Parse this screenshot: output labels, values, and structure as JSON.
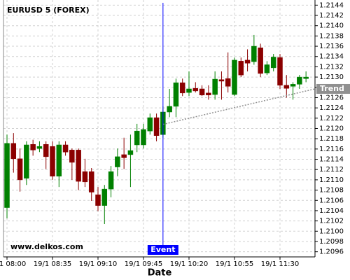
{
  "chart_data": {
    "type": "candlestick",
    "title": "EURUSD 5 (FOREX)",
    "watermark": "www.delkos.com",
    "x_label": "Date",
    "categories": [
      "19/1 08:00",
      null,
      null,
      null,
      null,
      null,
      null,
      "19/1 08:35",
      null,
      null,
      null,
      null,
      null,
      null,
      "19/1 09:10",
      null,
      null,
      null,
      null,
      null,
      null,
      "19/1 09:45",
      null,
      null,
      null,
      null,
      null,
      null,
      "19/1 10:20",
      null,
      null,
      null,
      null,
      null,
      null,
      "19/1 10:55",
      null,
      null,
      null,
      null,
      null,
      null,
      "19/1 11:30",
      null,
      null,
      null,
      null
    ],
    "open": [
      1.21046,
      1.21171,
      1.21141,
      1.21103,
      1.21169,
      1.21161,
      1.21169,
      1.21165,
      1.21107,
      1.21168,
      1.21158,
      1.21158,
      1.21116,
      1.21116,
      1.21071,
      1.2105,
      1.21082,
      1.21125,
      1.21149,
      1.21149,
      1.21168,
      1.21168,
      1.21195,
      1.21221,
      1.21188,
      1.21232,
      1.21243,
      1.21289,
      1.2127,
      1.21278,
      1.21277,
      1.21269,
      1.21266,
      1.21295,
      1.21297,
      1.21266,
      1.21331,
      1.21333,
      1.2133,
      1.21357,
      1.21308,
      1.21318,
      1.21338,
      1.21284,
      1.21282,
      1.21286,
      1.21297
    ],
    "high": [
      1.21188,
      1.21191,
      1.21161,
      1.21175,
      1.21178,
      1.21175,
      1.21175,
      1.21175,
      1.21175,
      1.21175,
      1.21161,
      1.21161,
      1.21141,
      1.21123,
      1.21086,
      1.2109,
      1.21127,
      1.21161,
      1.21182,
      1.21188,
      1.21209,
      1.21209,
      1.21229,
      1.21229,
      1.21243,
      1.21277,
      1.21297,
      1.21297,
      1.21311,
      1.2129,
      1.21284,
      1.21284,
      1.21311,
      1.21311,
      1.21348,
      1.21338,
      1.21338,
      1.21354,
      1.21382,
      1.21365,
      1.21331,
      1.21345,
      1.21345,
      1.21304,
      1.2129,
      1.21304,
      1.21311
    ],
    "low": [
      1.21025,
      1.21114,
      1.21077,
      1.2109,
      1.21147,
      1.21154,
      1.21121,
      1.211,
      1.21086,
      1.21147,
      1.211,
      1.2108,
      1.21086,
      1.21059,
      1.21039,
      1.21014,
      1.21066,
      1.21107,
      1.21121,
      1.21086,
      1.21154,
      1.21161,
      1.21188,
      1.21175,
      1.21182,
      1.21222,
      1.21222,
      1.21263,
      1.21263,
      1.2127,
      1.21263,
      1.21256,
      1.21256,
      1.21256,
      1.2127,
      1.21263,
      1.213,
      1.21311,
      1.21324,
      1.213,
      1.21304,
      1.21311,
      1.21277,
      1.2126,
      1.21256,
      1.21277,
      1.2129
    ],
    "close": [
      1.21171,
      1.21141,
      1.211,
      1.21168,
      1.21158,
      1.21165,
      1.21145,
      1.21107,
      1.21168,
      1.21154,
      1.21134,
      1.21097,
      1.21096,
      1.21076,
      1.2105,
      1.21082,
      1.21116,
      1.21145,
      1.21143,
      1.21157,
      1.21195,
      1.21198,
      1.21221,
      1.21186,
      1.21232,
      1.21243,
      1.21289,
      1.21269,
      1.21277,
      1.21273,
      1.21265,
      1.21265,
      1.21296,
      1.21292,
      1.21282,
      1.21333,
      1.21304,
      1.21327,
      1.2136,
      1.21307,
      1.21324,
      1.21339,
      1.21284,
      1.21278,
      1.21286,
      1.213,
      1.213
    ],
    "up_color": "#008000",
    "down_color": "#8b0000",
    "event": {
      "label": "Event",
      "at": 24,
      "color": "#0000ff"
    },
    "trend": {
      "label": "Trend",
      "start": 1.21208,
      "end": 1.21277,
      "color": "#909090"
    },
    "ylim": [
      1.2095,
      1.2145
    ],
    "yticks": [
      1.2096,
      1.2098,
      {
        "value": 1.21,
        "label": "1.2100"
      },
      1.2102,
      1.2104,
      1.2106,
      1.2108,
      {
        "value": 1.211,
        "label": "1.2110"
      },
      1.2112,
      1.2114,
      1.2116,
      1.2118,
      {
        "value": 1.212,
        "label": "1.2120"
      },
      1.2122,
      1.2124,
      1.2126,
      1.2128,
      {
        "value": 1.213,
        "label": "1.2130"
      },
      1.2132,
      1.2134,
      1.2136,
      1.2138,
      {
        "value": 1.214,
        "label": "1.2140"
      },
      1.2142,
      1.2144
    ],
    "grid": true
  }
}
